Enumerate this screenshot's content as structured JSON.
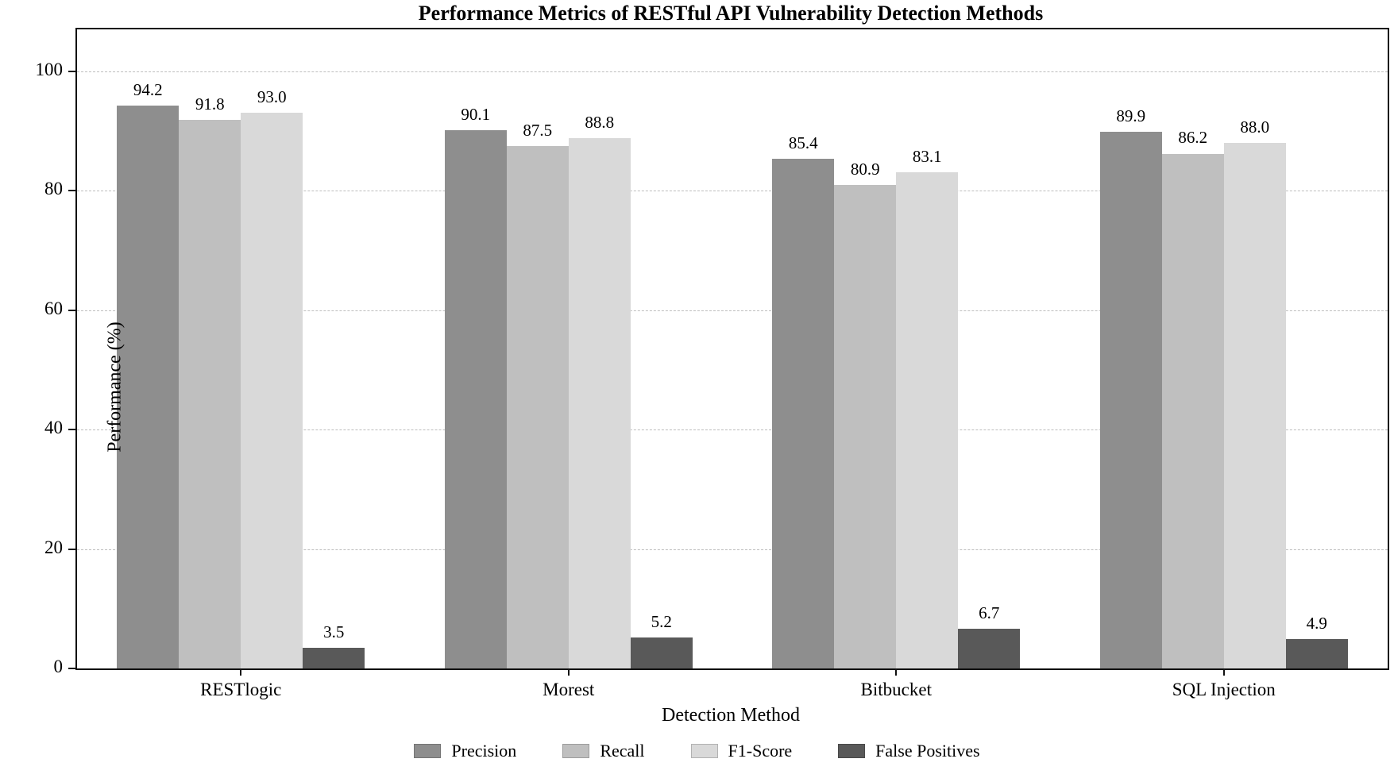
{
  "chart_data": {
    "type": "bar",
    "title": "Performance Metrics of RESTful API Vulnerability Detection Methods",
    "xlabel": "Detection Method",
    "ylabel": "Performance (%)",
    "categories": [
      "RESTlogic",
      "Morest",
      "Bitbucket",
      "SQL Injection"
    ],
    "series": [
      {
        "name": "Precision",
        "color": "#8e8e8e",
        "values": [
          94.2,
          90.1,
          85.4,
          89.9
        ]
      },
      {
        "name": "Recall",
        "color": "#bfbfbf",
        "values": [
          91.8,
          87.5,
          80.9,
          86.2
        ]
      },
      {
        "name": "F1-Score",
        "color": "#d9d9d9",
        "values": [
          93.0,
          88.8,
          83.1,
          88.0
        ]
      },
      {
        "name": "False Positives",
        "color": "#595959",
        "values": [
          3.5,
          5.2,
          6.7,
          4.9
        ]
      }
    ],
    "yticks": [
      0,
      20,
      40,
      60,
      80,
      100
    ],
    "ylim": [
      0,
      107
    ],
    "grid": "horizontal dashed gridlines at yticks",
    "legend_position": "bottom center",
    "bar_value_labels_decimals": 1,
    "axis_color": "#111111",
    "gridline_color": "#bdbdbd",
    "background_color": "#ffffff"
  }
}
